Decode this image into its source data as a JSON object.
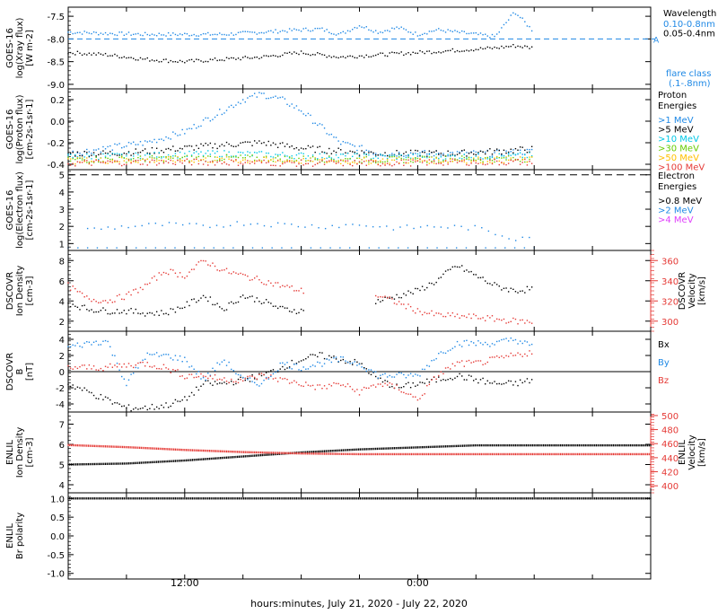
{
  "xaxis": {
    "label": "hours:minutes, July 21, 2020 - July 22, 2020",
    "ticks": [
      {
        "label": "12:00",
        "hour": 12
      },
      {
        "label": "0:00",
        "hour": 24
      }
    ],
    "range_hours": [
      6,
      36
    ]
  },
  "colors": {
    "black": "#000000",
    "blue": "#1e88e5",
    "cyan": "#00c8e6",
    "green": "#66cc00",
    "yellow": "#ffc000",
    "orange": "#ff7000",
    "red": "#e53935",
    "magenta": "#e040fb"
  },
  "chart_data": [
    {
      "type": "scatter",
      "panel": "xray",
      "ylabel_lines": [
        "GOES-16",
        "log(Xray flux)",
        "[W m-2]"
      ],
      "ylim": [
        -9.1,
        -7.3
      ],
      "yticks": [
        "-7.5",
        "-8.0",
        "-8.5",
        "-9.0"
      ],
      "ytick_values": [
        -7.5,
        -8.0,
        -8.5,
        -9.0
      ],
      "legend_title": "Wavelength",
      "legend": [
        {
          "label": "0.10-0.8nm",
          "color": "blue"
        },
        {
          "label": "0.05-0.4nm",
          "color": "black"
        }
      ],
      "annotation": {
        "label": "A",
        "value": -8.0
      },
      "flare_label": [
        "flare class",
        "(.1-.8nm)"
      ],
      "series": [
        {
          "name": "0.10-0.8nm",
          "color": "blue",
          "x": [
            6,
            8,
            10,
            12,
            14,
            16,
            18,
            19,
            20,
            21,
            22,
            23,
            24,
            25,
            26,
            27,
            28,
            29,
            30
          ],
          "y": [
            -7.85,
            -7.88,
            -7.9,
            -7.9,
            -7.9,
            -7.85,
            -7.8,
            -7.78,
            -7.9,
            -7.7,
            -7.85,
            -7.75,
            -7.9,
            -7.8,
            -7.85,
            -7.9,
            -7.95,
            -7.4,
            -7.85
          ]
        },
        {
          "name": "0.05-0.4nm",
          "color": "black",
          "x": [
            6,
            8,
            10,
            12,
            14,
            16,
            18,
            20,
            22,
            24,
            26,
            28,
            29,
            30
          ],
          "y": [
            -8.3,
            -8.35,
            -8.45,
            -8.5,
            -8.45,
            -8.4,
            -8.3,
            -8.4,
            -8.35,
            -8.3,
            -8.25,
            -8.2,
            -8.15,
            -8.2
          ]
        }
      ]
    },
    {
      "type": "scatter",
      "panel": "proton",
      "ylabel_lines": [
        "GOES-16",
        "log(Proton flux)",
        "[cm-2s-1sr-1]"
      ],
      "ylim": [
        -0.45,
        0.3
      ],
      "yticks": [
        "0.2",
        "0.0",
        "-0.2",
        "-0.4"
      ],
      "ytick_values": [
        0.2,
        0.0,
        -0.2,
        -0.4
      ],
      "legend_title": "Proton Energies",
      "legend": [
        {
          "label": ">1 MeV",
          "color": "blue"
        },
        {
          "label": ">5 MeV",
          "color": "black"
        },
        {
          "label": ">10 MeV",
          "color": "cyan"
        },
        {
          "label": ">30 MeV",
          "color": "green"
        },
        {
          "label": ">50 MeV",
          "color": "yellow"
        },
        {
          "label": ">100 MeV",
          "color": "red"
        }
      ],
      "series": [
        {
          "name": ">1 MeV",
          "color": "blue",
          "x": [
            6,
            8,
            10,
            12,
            13,
            14,
            15,
            16,
            17,
            18,
            19,
            20,
            22,
            24,
            26,
            28,
            30
          ],
          "y": [
            -0.3,
            -0.25,
            -0.2,
            -0.1,
            0.0,
            0.1,
            0.2,
            0.25,
            0.2,
            0.1,
            -0.05,
            -0.2,
            -0.3,
            -0.3,
            -0.3,
            -0.3,
            -0.28
          ]
        },
        {
          "name": ">5 MeV",
          "color": "black",
          "x": [
            6,
            8,
            10,
            12,
            14,
            16,
            18,
            20,
            22,
            24,
            26,
            28,
            30
          ],
          "y": [
            -0.3,
            -0.3,
            -0.28,
            -0.25,
            -0.22,
            -0.2,
            -0.25,
            -0.28,
            -0.3,
            -0.3,
            -0.3,
            -0.28,
            -0.26
          ]
        },
        {
          "name": ">10 MeV",
          "color": "cyan",
          "x": [
            6,
            10,
            14,
            18,
            22,
            26,
            30
          ],
          "y": [
            -0.33,
            -0.32,
            -0.3,
            -0.32,
            -0.33,
            -0.33,
            -0.32
          ]
        },
        {
          "name": ">30 MeV",
          "color": "green",
          "x": [
            6,
            10,
            14,
            18,
            22,
            26,
            30
          ],
          "y": [
            -0.36,
            -0.35,
            -0.34,
            -0.35,
            -0.36,
            -0.35,
            -0.35
          ]
        },
        {
          "name": ">50 MeV",
          "color": "yellow",
          "x": [
            6,
            10,
            14,
            18,
            22,
            26,
            30
          ],
          "y": [
            -0.37,
            -0.36,
            -0.36,
            -0.37,
            -0.37,
            -0.36,
            -0.36
          ]
        },
        {
          "name": ">100 MeV",
          "color": "red",
          "x": [
            6,
            10,
            14,
            18,
            22,
            26,
            30
          ],
          "y": [
            -0.39,
            -0.38,
            -0.38,
            -0.39,
            -0.39,
            -0.38,
            -0.38
          ]
        }
      ]
    },
    {
      "type": "scatter",
      "panel": "electron",
      "ylabel_lines": [
        "GOES-16",
        "log(Electron flux)",
        "[cm-2s-1sr-1]"
      ],
      "ylim": [
        0.6,
        5.3
      ],
      "yticks": [
        "5",
        "4",
        "3",
        "2",
        "1"
      ],
      "ytick_values": [
        5,
        4,
        3,
        2,
        1
      ],
      "legend_title": "Electron Energies",
      "legend": [
        {
          "label": ">0.8 MeV",
          "color": "black"
        },
        {
          "label": ">2 MeV",
          "color": "blue"
        },
        {
          "label": ">4 MeV",
          "color": "magenta"
        }
      ],
      "reference_line": 5.0,
      "series": [
        {
          "name": ">2 MeV",
          "color": "blue",
          "x": [
            7,
            9,
            11,
            13,
            15,
            17,
            19,
            21,
            23,
            25,
            27,
            29,
            30
          ],
          "y": [
            1.8,
            2.0,
            2.1,
            2.0,
            2.2,
            2.1,
            2.0,
            2.1,
            1.9,
            2.0,
            1.9,
            1.3,
            1.5
          ]
        },
        {
          "name": "baseline",
          "color": "blue",
          "x": [
            6,
            12,
            18,
            24,
            30
          ],
          "y": [
            0.75,
            0.75,
            0.75,
            0.75,
            0.75
          ]
        }
      ]
    },
    {
      "type": "scatter",
      "panel": "dscovr_density",
      "ylabel_lines": [
        "DSCOVR",
        "Ion Density",
        "[cm-3]"
      ],
      "ylabel_right_lines": [
        "DSCOVR",
        "Velocity",
        "[km/s]"
      ],
      "ylim": [
        1,
        9
      ],
      "yticks": [
        "8",
        "6",
        "4",
        "2"
      ],
      "ytick_values": [
        8,
        6,
        4,
        2
      ],
      "ylim_right": [
        290,
        370
      ],
      "yticks_right": [
        "360",
        "340",
        "320",
        "300"
      ],
      "ytick_values_right": [
        360,
        340,
        320,
        300
      ],
      "series": [
        {
          "name": "Ion Density",
          "color": "black",
          "axis": "left",
          "x": [
            6,
            7,
            8,
            9,
            10,
            11,
            12,
            13,
            14,
            15,
            16,
            17,
            18,
            22,
            23,
            24,
            25,
            26,
            27,
            28,
            29,
            30
          ],
          "y": [
            3.8,
            3.2,
            3.0,
            3.0,
            2.8,
            2.8,
            3.5,
            4.5,
            3.2,
            4.5,
            4.0,
            3.2,
            3.0,
            4.0,
            4.5,
            5.0,
            6.0,
            7.5,
            6.5,
            5.5,
            5.0,
            5.2
          ]
        },
        {
          "name": "Velocity",
          "color": "red",
          "axis": "right",
          "x": [
            6,
            7,
            8,
            9,
            10,
            11,
            12,
            13,
            14,
            15,
            16,
            17,
            18,
            22,
            23,
            24,
            25,
            26,
            27,
            28,
            29,
            30
          ],
          "y": [
            335,
            322,
            320,
            325,
            335,
            350,
            345,
            360,
            350,
            345,
            340,
            335,
            330,
            325,
            318,
            310,
            306,
            305,
            304,
            302,
            300,
            299
          ]
        }
      ]
    },
    {
      "type": "scatter",
      "panel": "dscovr_b",
      "ylabel_lines": [
        "DSCOVR",
        "B",
        "[nT]"
      ],
      "ylim": [
        -5,
        5
      ],
      "yticks": [
        "4",
        "2",
        "0",
        "-2",
        "-4"
      ],
      "ytick_values": [
        4,
        2,
        0,
        -2,
        -4
      ],
      "legend": [
        {
          "label": "Bx",
          "color": "black"
        },
        {
          "label": "By",
          "color": "blue"
        },
        {
          "label": "Bz",
          "color": "red"
        }
      ],
      "series": [
        {
          "name": "Bx",
          "color": "black",
          "x": [
            6,
            7,
            8,
            9,
            10,
            11,
            12,
            13,
            14,
            15,
            16,
            17,
            18,
            19,
            20,
            21,
            22,
            23,
            24,
            25,
            26,
            27,
            28,
            29,
            30
          ],
          "y": [
            -1.5,
            -2.5,
            -3.5,
            -4.5,
            -4.5,
            -4.2,
            -3.5,
            -1.5,
            -1.5,
            -1.0,
            -0.5,
            0.5,
            1.5,
            2.0,
            1.5,
            1.0,
            -1.0,
            -2.0,
            -1.5,
            -1.0,
            -0.5,
            -1.0,
            -1.5,
            -1.5,
            -1.0
          ]
        },
        {
          "name": "By",
          "color": "blue",
          "x": [
            6,
            7,
            8,
            9,
            10,
            11,
            12,
            13,
            14,
            15,
            16,
            17,
            18,
            19,
            20,
            21,
            22,
            23,
            24,
            25,
            26,
            27,
            28,
            29,
            30
          ],
          "y": [
            3.0,
            3.5,
            3.8,
            -1.5,
            2.0,
            2.0,
            1.5,
            -1.0,
            1.5,
            -1.0,
            -1.5,
            1.0,
            0.5,
            1.0,
            1.5,
            1.0,
            -0.5,
            -0.5,
            -0.5,
            2.0,
            3.5,
            3.5,
            3.5,
            4.0,
            3.0
          ]
        },
        {
          "name": "Bz",
          "color": "red",
          "x": [
            6,
            7,
            8,
            9,
            10,
            11,
            12,
            13,
            14,
            15,
            16,
            17,
            18,
            19,
            20,
            21,
            22,
            23,
            24,
            25,
            26,
            27,
            28,
            29,
            30
          ],
          "y": [
            0.5,
            0.5,
            0.5,
            0.8,
            1.0,
            0.5,
            -0.5,
            -0.5,
            -1.0,
            -1.0,
            -0.5,
            -1.0,
            -1.5,
            -2.0,
            -1.5,
            -2.5,
            -1.5,
            -2.0,
            -3.5,
            -0.5,
            1.0,
            1.0,
            1.5,
            2.0,
            2.5
          ]
        }
      ]
    },
    {
      "type": "line",
      "panel": "enlil_density",
      "ylabel_lines": [
        "ENLIL",
        "Ion Density",
        "[cm-3]"
      ],
      "ylabel_right_lines": [
        "ENLIL",
        "Velocity",
        "[km/s]"
      ],
      "ylim": [
        3.6,
        7.6
      ],
      "yticks": [
        "7",
        "6",
        "5",
        "4"
      ],
      "ytick_values": [
        7,
        6,
        5,
        4
      ],
      "ylim_right": [
        390,
        505
      ],
      "yticks_right": [
        "500",
        "480",
        "460",
        "440",
        "420",
        "400"
      ],
      "ytick_values_right": [
        500,
        480,
        460,
        440,
        420,
        400
      ],
      "series": [
        {
          "name": "Ion Density",
          "color": "black",
          "axis": "left",
          "x": [
            6,
            9,
            12,
            15,
            18,
            21,
            24,
            27,
            30,
            33,
            36
          ],
          "y": [
            5.0,
            5.05,
            5.2,
            5.4,
            5.6,
            5.75,
            5.85,
            5.95,
            5.95,
            5.95,
            5.95
          ]
        },
        {
          "name": "Velocity",
          "color": "red",
          "axis": "right",
          "x": [
            6,
            9,
            12,
            15,
            18,
            21,
            24,
            27,
            30,
            33,
            36
          ],
          "y": [
            458,
            455,
            451,
            448,
            446,
            445,
            445,
            445,
            445,
            445,
            445
          ]
        }
      ]
    },
    {
      "type": "line",
      "panel": "enlil_polarity",
      "ylabel_lines": [
        "ENLIL",
        "Br polarity"
      ],
      "ylim": [
        -1.15,
        1.15
      ],
      "yticks": [
        "1.0",
        "0.5",
        "0.0",
        "-0.5",
        "-1.0"
      ],
      "ytick_values": [
        1.0,
        0.5,
        0.0,
        -0.5,
        -1.0
      ],
      "series": [
        {
          "name": "Br polarity",
          "color": "black",
          "axis": "left",
          "x": [
            6,
            12,
            18,
            24,
            30,
            36
          ],
          "y": [
            1,
            1,
            1,
            1,
            1,
            1
          ]
        }
      ]
    }
  ]
}
